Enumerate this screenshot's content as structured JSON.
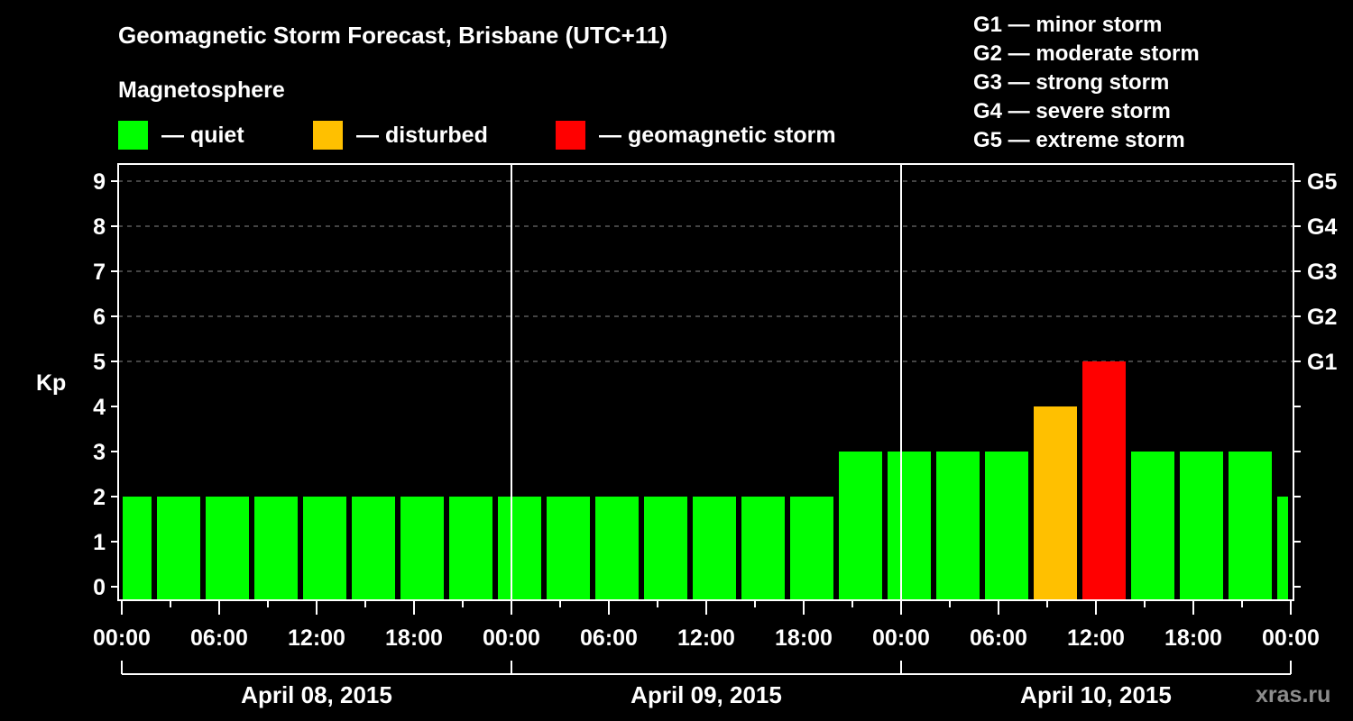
{
  "header": {
    "title": "Geomagnetic Storm Forecast, Brisbane (UTC+11)",
    "subtitle": "Magnetosphere"
  },
  "legend": [
    {
      "label": "— quiet",
      "color": "#00ff00"
    },
    {
      "label": "— disturbed",
      "color": "#ffc000"
    },
    {
      "label": "— geomagnetic storm",
      "color": "#ff0000"
    }
  ],
  "storm_scale": [
    "G1 — minor storm",
    "G2 — moderate storm",
    "G3 — strong storm",
    "G4 — severe storm",
    "G5 — extreme storm"
  ],
  "watermark": "xras.ru",
  "colors": {
    "quiet": "#00ff00",
    "disturbed": "#ffc000",
    "storm": "#ff0000",
    "background": "#000000",
    "grid": "#888888"
  },
  "chart_data": {
    "type": "bar",
    "title": "Geomagnetic Storm Forecast, Brisbane (UTC+11)",
    "xlabel": "",
    "ylabel": "Kp",
    "ylim": [
      0,
      9
    ],
    "yticks": [
      0,
      1,
      2,
      3,
      4,
      5,
      6,
      7,
      8,
      9
    ],
    "right_axis_labels": [
      {
        "kp": 5,
        "label": "G1"
      },
      {
        "kp": 6,
        "label": "G2"
      },
      {
        "kp": 7,
        "label": "G3"
      },
      {
        "kp": 8,
        "label": "G4"
      },
      {
        "kp": 9,
        "label": "G5"
      }
    ],
    "grid": "dashed horizontal at Kp 5-9",
    "xtick_labels": [
      "00:00",
      "06:00",
      "12:00",
      "18:00",
      "00:00",
      "06:00",
      "12:00",
      "18:00",
      "00:00",
      "06:00",
      "12:00",
      "18:00",
      "00:00"
    ],
    "days": [
      "April 08, 2015",
      "April 09, 2015",
      "April 10, 2015"
    ],
    "bar_interval_hours": 3,
    "bar_start_offsets_hours": [
      -1,
      2,
      5,
      8,
      11,
      14,
      17,
      20,
      23,
      26,
      29,
      32,
      35,
      38,
      41,
      44,
      47,
      50,
      53,
      56,
      59,
      62,
      65,
      68,
      71
    ],
    "values": [
      2,
      2,
      2,
      2,
      2,
      2,
      2,
      2,
      2,
      2,
      2,
      2,
      2,
      2,
      2,
      3,
      3,
      3,
      3,
      4,
      5,
      3,
      3,
      3,
      2
    ],
    "levels": [
      "quiet",
      "quiet",
      "quiet",
      "quiet",
      "quiet",
      "quiet",
      "quiet",
      "quiet",
      "quiet",
      "quiet",
      "quiet",
      "quiet",
      "quiet",
      "quiet",
      "quiet",
      "quiet",
      "quiet",
      "quiet",
      "quiet",
      "disturbed",
      "storm",
      "quiet",
      "quiet",
      "quiet",
      "quiet"
    ]
  }
}
